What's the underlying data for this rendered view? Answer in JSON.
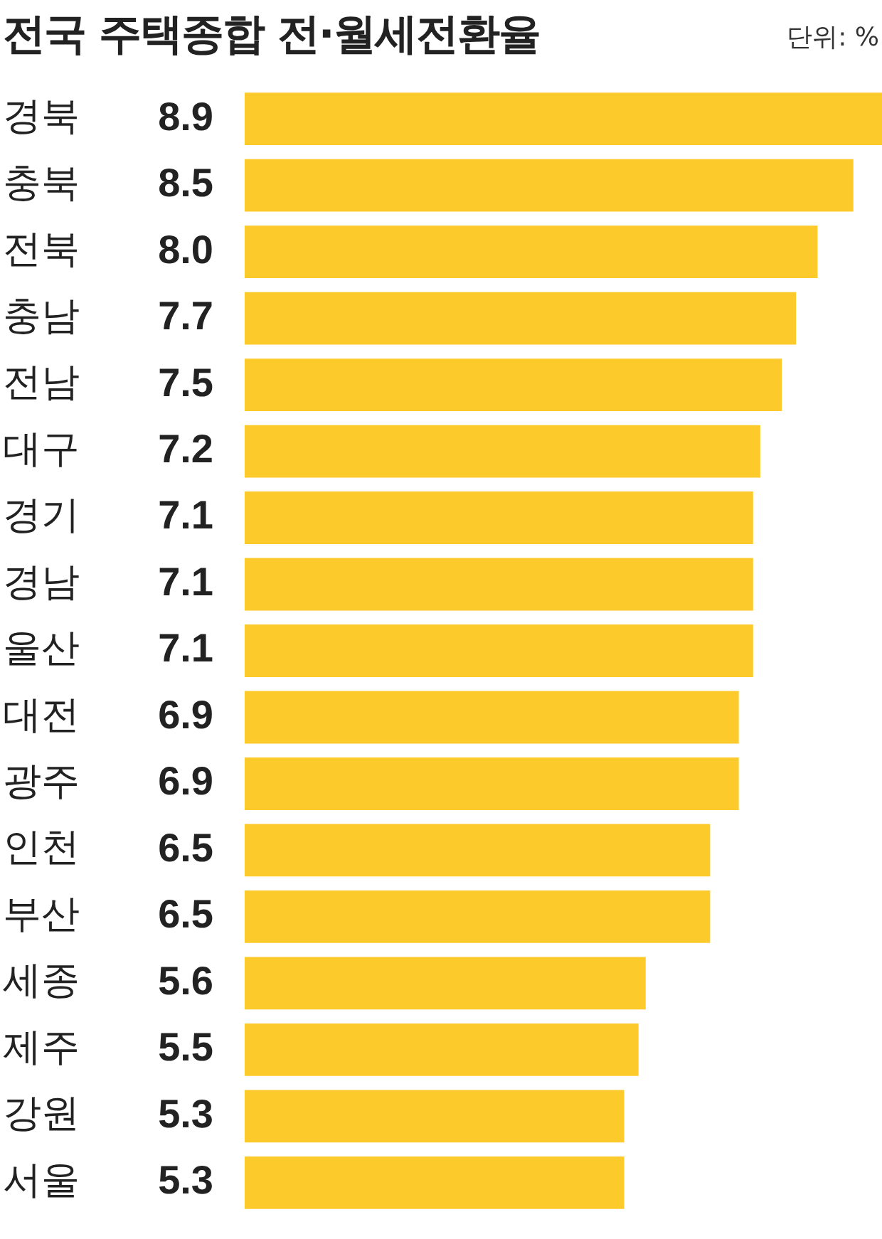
{
  "chart_data": {
    "type": "bar",
    "orientation": "horizontal",
    "title": "전국 주택종합 전·월세전환율",
    "annotations": [
      "단위: %"
    ],
    "categories": [
      "경북",
      "충북",
      "전북",
      "충남",
      "전남",
      "대구",
      "경기",
      "경남",
      "울산",
      "대전",
      "광주",
      "인천",
      "부산",
      "세종",
      "제주",
      "강원",
      "서울"
    ],
    "values": [
      8.9,
      8.5,
      8.0,
      7.7,
      7.5,
      7.2,
      7.1,
      7.1,
      7.1,
      6.9,
      6.9,
      6.5,
      6.5,
      5.6,
      5.5,
      5.3,
      5.3
    ],
    "value_labels": [
      "8.9",
      "8.5",
      "8.0",
      "7.7",
      "7.5",
      "7.2",
      "7.1",
      "7.1",
      "7.1",
      "6.9",
      "6.9",
      "6.5",
      "6.5",
      "5.6",
      "5.5",
      "5.3",
      "5.3"
    ],
    "color": "#fdca2b"
  }
}
